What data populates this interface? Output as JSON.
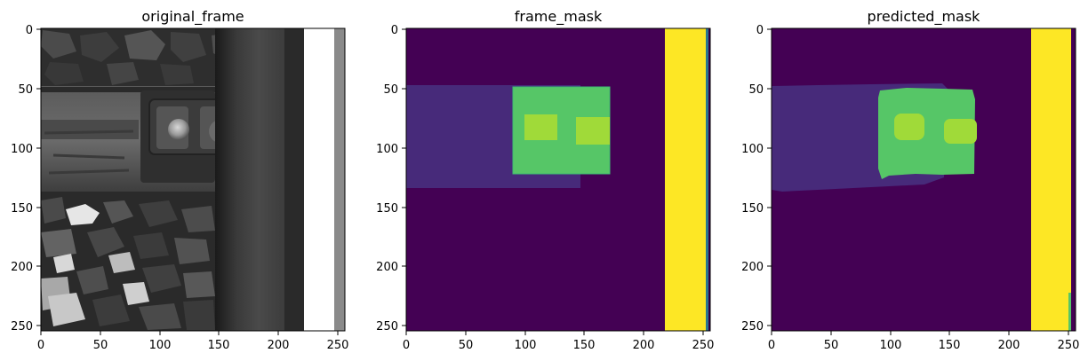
{
  "panels": [
    {
      "title": "original_frame",
      "kind": "grayscale_photo",
      "subject": "railway rail with clamp plate, two bolts and ballast stones",
      "xticks": [
        "0",
        "50",
        "100",
        "150",
        "200",
        "250"
      ],
      "yticks": [
        "0",
        "50",
        "100",
        "150",
        "200",
        "250"
      ]
    },
    {
      "title": "frame_mask",
      "kind": "segmentation_mask",
      "colormap": "viridis",
      "xticks": [
        "0",
        "50",
        "100",
        "150",
        "200",
        "250"
      ],
      "yticks": [
        "0",
        "50",
        "100",
        "150",
        "200",
        "250"
      ]
    },
    {
      "title": "predicted_mask",
      "kind": "segmentation_mask",
      "colormap": "viridis",
      "xticks": [
        "0",
        "50",
        "100",
        "150",
        "200",
        "250"
      ],
      "yticks": [
        "0",
        "50",
        "100",
        "150",
        "200",
        "250"
      ]
    }
  ],
  "image_size": [
    256,
    256
  ],
  "colors": {
    "background": "#440154",
    "class_plate": "#472a7a",
    "class_clamp": "#56c667",
    "class_bolt": "#a0da39",
    "class_rail": "#fde725"
  },
  "mask_regions": {
    "plate": {
      "x": [
        0,
        147
      ],
      "y": [
        48,
        134
      ]
    },
    "clamp": {
      "x": [
        90,
        171
      ],
      "y": [
        49,
        122
      ]
    },
    "bolts": [
      {
        "x": [
          99,
          126
        ],
        "y": [
          72,
          93
        ]
      },
      {
        "x": [
          142,
          171
        ],
        "y": [
          74,
          96
        ]
      }
    ],
    "rail": {
      "x": [
        217,
        251
      ],
      "y": [
        0,
        255
      ]
    }
  }
}
